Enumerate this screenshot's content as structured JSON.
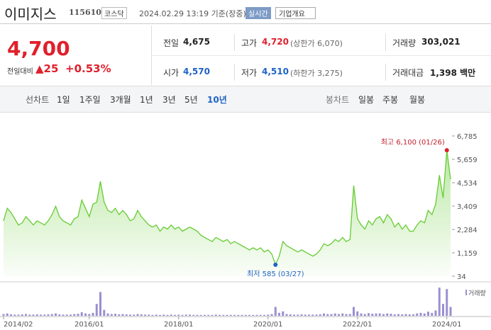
{
  "header": {
    "name": "이미지스",
    "code": "115610",
    "market": "코스닥",
    "datetime": "2024.02.29 13:19 기준(장중)",
    "realtime": "실시간",
    "overview": "기업개요"
  },
  "quote": {
    "price": "4,700",
    "change_label": "전일대비",
    "change": "▲25",
    "change_pct": "+0.53%"
  },
  "table": {
    "rows": [
      [
        [
          "전일",
          "4,675"
        ],
        [
          "고가",
          "4,720",
          "(상한가 6,070)"
        ],
        [
          "거래량",
          "303,021"
        ]
      ],
      [
        [
          "시가",
          "4,570"
        ],
        [
          "저가",
          "4,510",
          "(하한가 3,275)"
        ],
        [
          "거래대금",
          "1,398 백만"
        ]
      ]
    ]
  },
  "tabs": {
    "line_label": "선차트",
    "line": [
      "1일",
      "1주일",
      "3개월",
      "1년",
      "3년",
      "5년",
      "10년"
    ],
    "selected": "10년",
    "candle_label": "봉차트",
    "candle": [
      "일봉",
      "주봉",
      "월봉"
    ]
  },
  "chart_data": [
    {
      "type": "area",
      "color": "#66cc33",
      "categories": [
        "2014/02",
        null,
        null,
        null,
        null,
        null,
        null,
        null,
        null,
        null,
        null,
        null,
        null,
        null,
        null,
        null,
        null,
        null,
        null,
        null,
        null,
        null,
        null,
        "2016/01",
        null,
        null,
        null,
        null,
        null,
        null,
        null,
        null,
        null,
        null,
        null,
        null,
        null,
        null,
        null,
        null,
        null,
        null,
        null,
        null,
        null,
        null,
        null,
        "2018/01",
        null,
        null,
        null,
        null,
        null,
        null,
        null,
        null,
        null,
        null,
        null,
        null,
        null,
        null,
        null,
        null,
        null,
        null,
        null,
        null,
        null,
        null,
        null,
        "2020/01",
        null,
        null,
        null,
        null,
        null,
        null,
        null,
        null,
        null,
        null,
        null,
        null,
        null,
        null,
        null,
        null,
        null,
        null,
        null,
        null,
        null,
        null,
        null,
        "2022/01",
        null,
        null,
        null,
        null,
        null,
        null,
        null,
        null,
        null,
        null,
        null,
        null,
        null,
        null,
        null,
        null,
        null,
        null,
        null,
        null,
        null,
        null,
        null,
        "2024/01",
        null
      ],
      "values": [
        2700,
        3300,
        3100,
        2800,
        2500,
        2600,
        2900,
        2700,
        2500,
        2700,
        2600,
        2500,
        2700,
        3000,
        3400,
        2900,
        2700,
        2600,
        2500,
        2800,
        2900,
        3700,
        3300,
        2900,
        3500,
        3600,
        4600,
        3600,
        3200,
        3100,
        3300,
        3000,
        3200,
        3000,
        2700,
        2800,
        3200,
        2900,
        2700,
        2500,
        2400,
        2500,
        2200,
        2400,
        2300,
        2500,
        2300,
        2400,
        2200,
        2300,
        2400,
        2300,
        2200,
        2000,
        1900,
        1800,
        1700,
        1900,
        1800,
        1700,
        1800,
        1600,
        1700,
        1600,
        1500,
        1400,
        1300,
        1400,
        1300,
        1400,
        1200,
        1300,
        1100,
        585,
        1000,
        1700,
        1500,
        1400,
        1300,
        1200,
        1300,
        1200,
        1100,
        1000,
        1100,
        1300,
        1600,
        1500,
        1600,
        1800,
        1700,
        1900,
        1700,
        1800,
        4400,
        2800,
        2500,
        2300,
        2700,
        2500,
        2800,
        2900,
        2600,
        3000,
        2800,
        2400,
        2600,
        2300,
        2500,
        2200,
        2200,
        2500,
        2700,
        2600,
        3200,
        3000,
        3500,
        4900,
        3800,
        6100,
        4700
      ],
      "ylim": [
        34,
        6785
      ],
      "yticks": [
        34,
        {
          "value": 1159,
          "label": "1,159"
        },
        {
          "value": 2284,
          "label": "2,284"
        },
        {
          "value": 3409,
          "label": "3,409"
        },
        {
          "value": 4534,
          "label": "4,534"
        },
        {
          "value": 5659,
          "label": "5,659"
        },
        {
          "value": 6785,
          "label": "6,785"
        }
      ],
      "annotations": {
        "high": "최고 6,100 (01/26)",
        "low": "최저 585 (03/27)"
      }
    },
    {
      "type": "bar",
      "color": "#9a8fd0",
      "legend": "거래량",
      "ylim": [
        0,
        100
      ],
      "values": [
        6,
        8,
        5,
        4,
        4,
        5,
        6,
        4,
        4,
        5,
        4,
        4,
        5,
        6,
        8,
        5,
        4,
        4,
        4,
        6,
        7,
        12,
        8,
        6,
        10,
        40,
        80,
        20,
        8,
        6,
        7,
        5,
        6,
        5,
        4,
        4,
        6,
        5,
        4,
        4,
        3,
        4,
        3,
        4,
        3,
        4,
        3,
        4,
        3,
        4,
        4,
        3,
        3,
        3,
        3,
        3,
        3,
        4,
        3,
        3,
        3,
        3,
        3,
        3,
        3,
        3,
        3,
        3,
        3,
        3,
        3,
        4,
        6,
        30,
        10,
        15,
        6,
        5,
        4,
        4,
        5,
        4,
        4,
        4,
        4,
        5,
        8,
        6,
        6,
        8,
        6,
        8,
        6,
        6,
        30,
        15,
        8,
        6,
        9,
        7,
        8,
        8,
        6,
        8,
        7,
        5,
        6,
        5,
        6,
        5,
        5,
        8,
        10,
        8,
        14,
        10,
        18,
        95,
        40,
        90,
        30
      ]
    }
  ]
}
